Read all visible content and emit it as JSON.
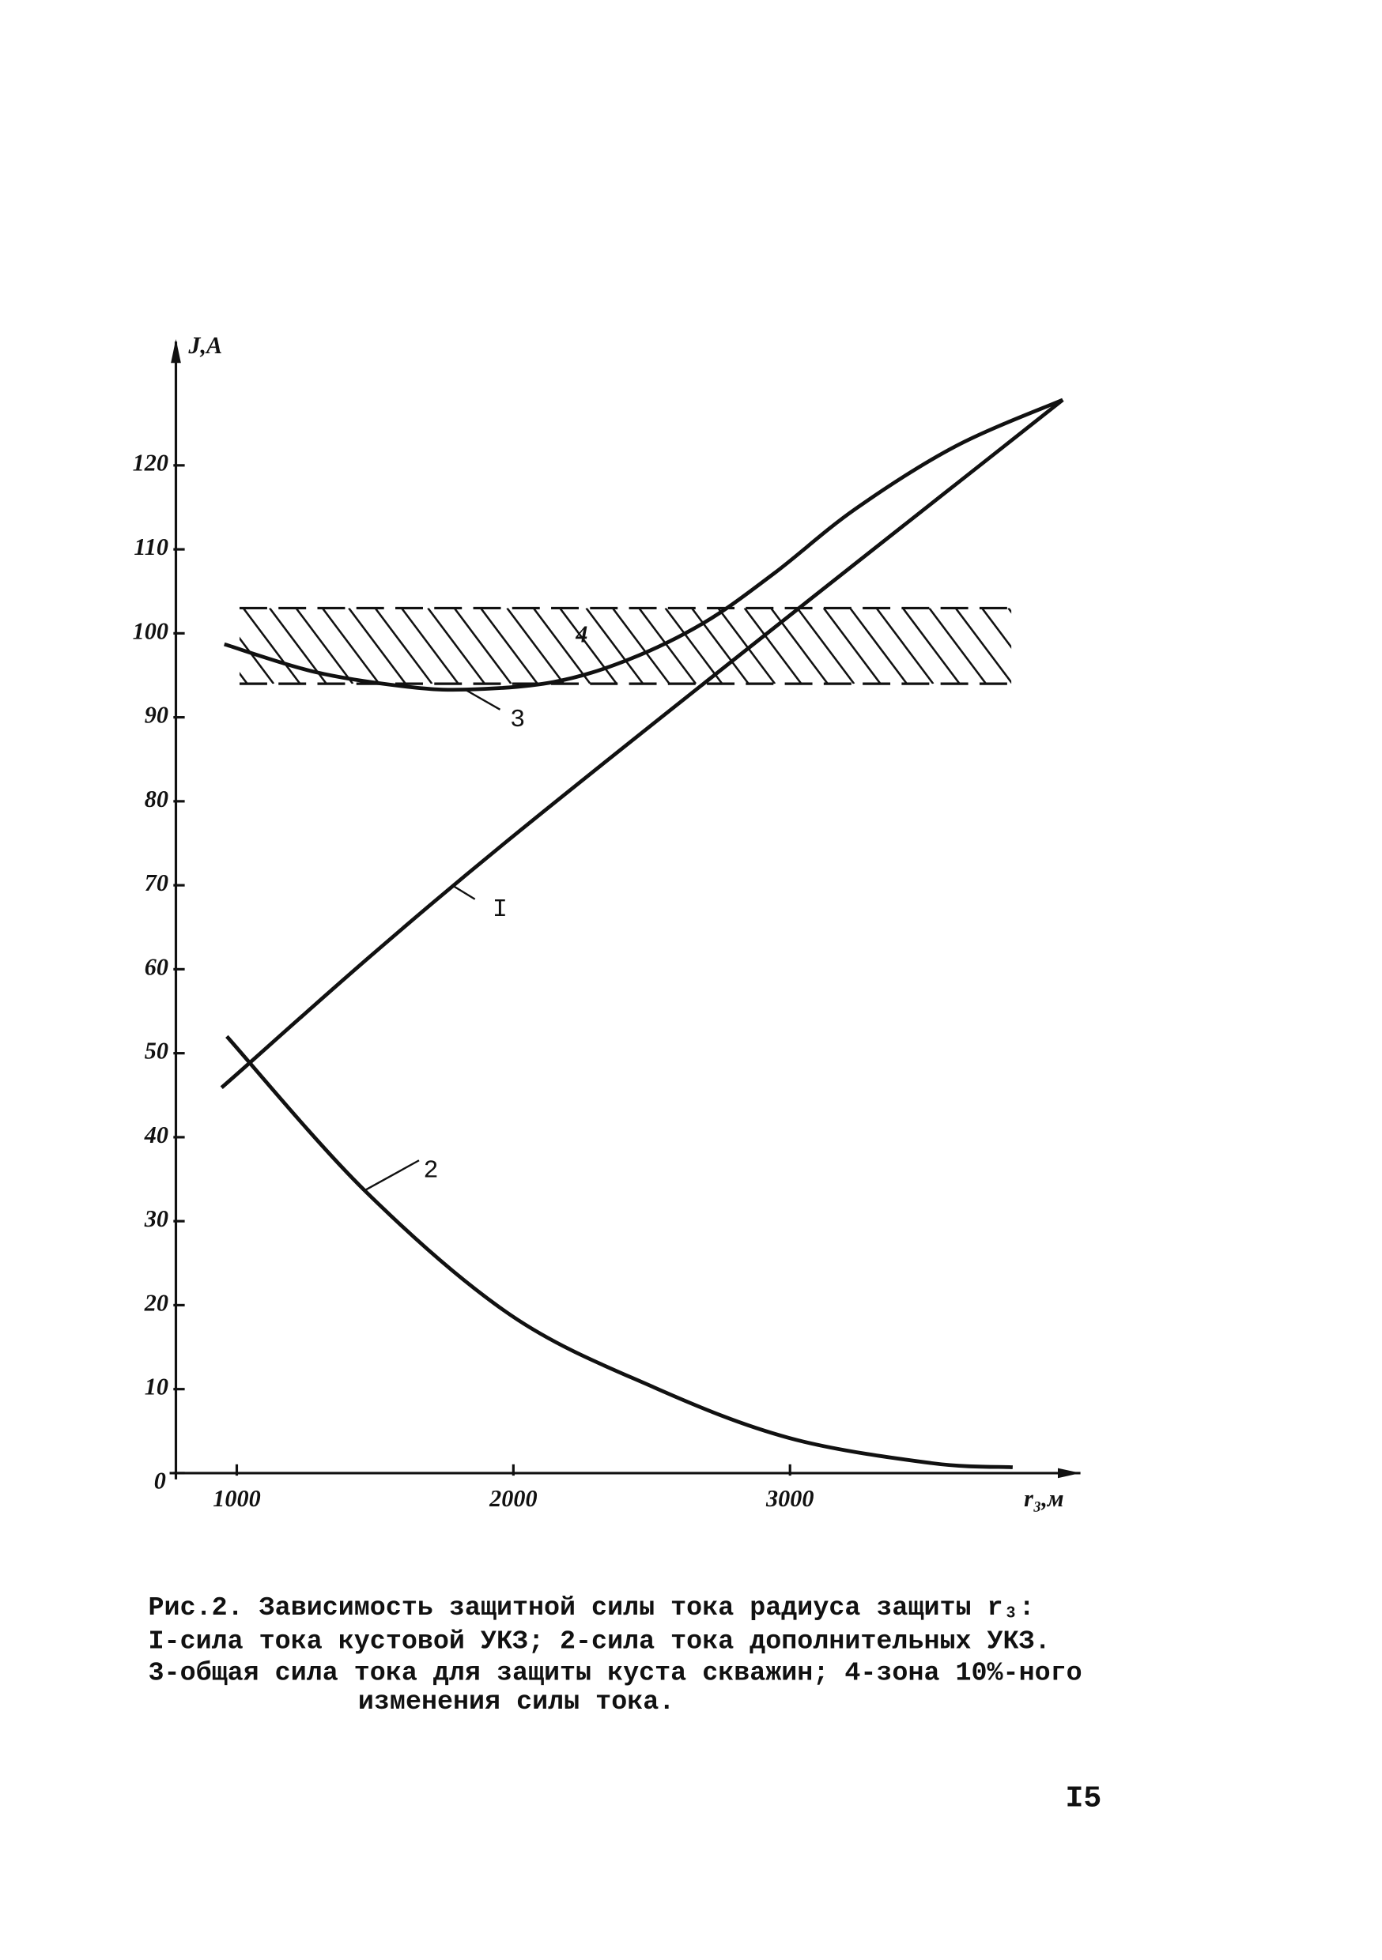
{
  "chart_data": {
    "type": "line",
    "y_label": "J,A",
    "x_label": "r₃,м",
    "xlim": [
      780,
      4050
    ],
    "ylim": [
      0,
      131
    ],
    "xticks": [
      1000,
      2000,
      3000
    ],
    "yticks": [
      0,
      10,
      20,
      30,
      40,
      50,
      60,
      70,
      80,
      90,
      100,
      110,
      120
    ],
    "series": [
      {
        "name": "I",
        "color": "#111111",
        "x": [
          945,
          1964,
          3986
        ],
        "values": [
          45.9,
          74.9,
          127.8
        ]
      },
      {
        "name": "2",
        "color": "#111111",
        "x": [
          964,
          1464,
          1991,
          2509,
          2995,
          3509,
          3805
        ],
        "values": [
          52,
          33.6,
          18.8,
          10.2,
          4.2,
          1.2,
          0.7
        ]
      },
      {
        "name": "3",
        "color": "#111111",
        "x": [
          955,
          1282,
          1600,
          1827,
          2145,
          2418,
          2691,
          2945,
          3236,
          3600,
          3986
        ],
        "values": [
          98.7,
          95.4,
          93.7,
          93.3,
          94.2,
          96.9,
          101.3,
          107.2,
          114.8,
          122.3,
          127.8
        ]
      }
    ],
    "band": {
      "name": "4",
      "xmin": 1010,
      "xmax": 3800,
      "ymin": 94,
      "ymax": 103
    }
  },
  "caption": [
    "Рис.2. Зависимость защитной силы тока радиуса защиты r₃:",
    "I-сила тока кустовой УКЗ; 2-сила тока дополнительных УКЗ.",
    "3-общая сила тока для защиты куста скважин; 4-зона 10%-ного",
    "изменения силы тока."
  ],
  "page_number": "I5"
}
